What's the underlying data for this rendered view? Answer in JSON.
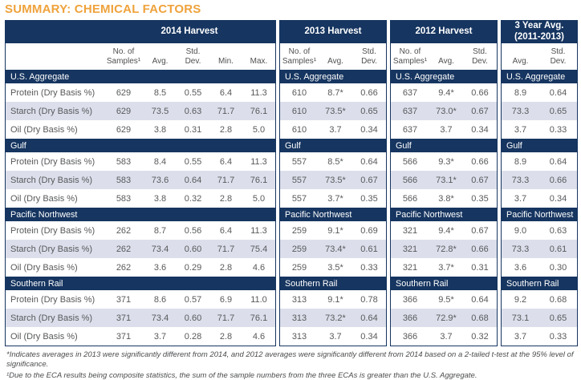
{
  "title": "SUMMARY: CHEMICAL FACTORS",
  "colors": {
    "title_orange": "#EFA23B",
    "header_navy": "#163560",
    "stripe_lavender": "#dcdfeb",
    "body_text_gray": "#58595b"
  },
  "panels": [
    {
      "header_lines": [
        "2014 Harvest"
      ],
      "has_labels": true,
      "has_samples_col": true,
      "columns": [
        [
          "No. of",
          "Samples¹"
        ],
        [
          "Avg."
        ],
        [
          "Std.",
          "Dev."
        ],
        [
          "Min."
        ],
        [
          "Max."
        ]
      ],
      "sections": [
        {
          "name": "U.S. Aggregate",
          "rows": [
            {
              "label": "Protein (Dry Basis %)",
              "values": [
                "629",
                "8.5",
                "0.55",
                "6.4",
                "11.3"
              ]
            },
            {
              "label": "Starch (Dry Basis %)",
              "values": [
                "629",
                "73.5",
                "0.63",
                "71.7",
                "76.1"
              ]
            },
            {
              "label": "Oil (Dry Basis %)",
              "values": [
                "629",
                "3.8",
                "0.31",
                "2.8",
                "5.0"
              ]
            }
          ]
        },
        {
          "name": "Gulf",
          "rows": [
            {
              "label": "Protein (Dry Basis %)",
              "values": [
                "583",
                "8.4",
                "0.55",
                "6.4",
                "11.3"
              ]
            },
            {
              "label": "Starch (Dry Basis %)",
              "values": [
                "583",
                "73.6",
                "0.64",
                "71.7",
                "76.1"
              ]
            },
            {
              "label": "Oil (Dry Basis %)",
              "values": [
                "583",
                "3.8",
                "0.32",
                "2.8",
                "5.0"
              ]
            }
          ]
        },
        {
          "name": "Pacific Northwest",
          "rows": [
            {
              "label": "Protein (Dry Basis %)",
              "values": [
                "262",
                "8.7",
                "0.56",
                "6.4",
                "11.3"
              ]
            },
            {
              "label": "Starch (Dry Basis %)",
              "values": [
                "262",
                "73.4",
                "0.60",
                "71.7",
                "75.4"
              ]
            },
            {
              "label": "Oil (Dry Basis %)",
              "values": [
                "262",
                "3.6",
                "0.29",
                "2.8",
                "4.6"
              ]
            }
          ]
        },
        {
          "name": "Southern Rail",
          "rows": [
            {
              "label": "Protein (Dry Basis %)",
              "values": [
                "371",
                "8.6",
                "0.57",
                "6.9",
                "11.0"
              ]
            },
            {
              "label": "Starch (Dry Basis %)",
              "values": [
                "371",
                "73.4",
                "0.60",
                "71.7",
                "76.1"
              ]
            },
            {
              "label": "Oil (Dry Basis %)",
              "values": [
                "371",
                "3.7",
                "0.28",
                "2.8",
                "4.6"
              ]
            }
          ]
        }
      ]
    },
    {
      "header_lines": [
        "2013 Harvest"
      ],
      "has_labels": false,
      "has_samples_col": true,
      "columns": [
        [
          "No. of",
          "Samples¹"
        ],
        [
          "Avg."
        ],
        [
          "Std.",
          "Dev."
        ]
      ],
      "sections": [
        {
          "name": "U.S. Aggregate",
          "rows": [
            {
              "values": [
                "610",
                "8.7*",
                "0.66"
              ]
            },
            {
              "values": [
                "610",
                "73.5*",
                "0.65"
              ]
            },
            {
              "values": [
                "610",
                "3.7",
                "0.34"
              ]
            }
          ]
        },
        {
          "name": "Gulf",
          "rows": [
            {
              "values": [
                "557",
                "8.5*",
                "0.64"
              ]
            },
            {
              "values": [
                "557",
                "73.5*",
                "0.67"
              ]
            },
            {
              "values": [
                "557",
                "3.7*",
                "0.35"
              ]
            }
          ]
        },
        {
          "name": "Pacific Northwest",
          "rows": [
            {
              "values": [
                "259",
                "9.1*",
                "0.69"
              ]
            },
            {
              "values": [
                "259",
                "73.4*",
                "0.61"
              ]
            },
            {
              "values": [
                "259",
                "3.5*",
                "0.33"
              ]
            }
          ]
        },
        {
          "name": "Southern Rail",
          "rows": [
            {
              "values": [
                "313",
                "9.1*",
                "0.78"
              ]
            },
            {
              "values": [
                "313",
                "73.2*",
                "0.64"
              ]
            },
            {
              "values": [
                "313",
                "3.7",
                "0.34"
              ]
            }
          ]
        }
      ]
    },
    {
      "header_lines": [
        "2012 Harvest"
      ],
      "has_labels": false,
      "has_samples_col": true,
      "columns": [
        [
          "No. of",
          "Samples¹"
        ],
        [
          "Avg."
        ],
        [
          "Std.",
          "Dev."
        ]
      ],
      "sections": [
        {
          "name": "U.S. Aggregate",
          "rows": [
            {
              "values": [
                "637",
                "9.4*",
                "0.66"
              ]
            },
            {
              "values": [
                "637",
                "73.0*",
                "0.67"
              ]
            },
            {
              "values": [
                "637",
                "3.7",
                "0.34"
              ]
            }
          ]
        },
        {
          "name": "Gulf",
          "rows": [
            {
              "values": [
                "566",
                "9.3*",
                "0.66"
              ]
            },
            {
              "values": [
                "566",
                "73.1*",
                "0.67"
              ]
            },
            {
              "values": [
                "566",
                "3.8*",
                "0.35"
              ]
            }
          ]
        },
        {
          "name": "Pacific Northwest",
          "rows": [
            {
              "values": [
                "321",
                "9.4*",
                "0.67"
              ]
            },
            {
              "values": [
                "321",
                "72.8*",
                "0.66"
              ]
            },
            {
              "values": [
                "321",
                "3.7*",
                "0.31"
              ]
            }
          ]
        },
        {
          "name": "Southern Rail",
          "rows": [
            {
              "values": [
                "366",
                "9.5*",
                "0.64"
              ]
            },
            {
              "values": [
                "366",
                "72.9*",
                "0.68"
              ]
            },
            {
              "values": [
                "366",
                "3.7",
                "0.32"
              ]
            }
          ]
        }
      ]
    },
    {
      "header_lines": [
        "3 Year Avg.",
        "(2011-2013)"
      ],
      "has_labels": false,
      "has_samples_col": false,
      "columns": [
        [
          "Avg."
        ],
        [
          "Std.",
          "Dev."
        ]
      ],
      "sections": [
        {
          "name": "U.S. Aggregate",
          "rows": [
            {
              "values": [
                "8.9",
                "0.64"
              ]
            },
            {
              "values": [
                "73.3",
                "0.65"
              ]
            },
            {
              "values": [
                "3.7",
                "0.33"
              ]
            }
          ]
        },
        {
          "name": "Gulf",
          "rows": [
            {
              "values": [
                "8.9",
                "0.64"
              ]
            },
            {
              "values": [
                "73.3",
                "0.66"
              ]
            },
            {
              "values": [
                "3.7",
                "0.34"
              ]
            }
          ]
        },
        {
          "name": "Pacific Northwest",
          "rows": [
            {
              "values": [
                "9.0",
                "0.63"
              ]
            },
            {
              "values": [
                "73.3",
                "0.61"
              ]
            },
            {
              "values": [
                "3.6",
                "0.30"
              ]
            }
          ]
        },
        {
          "name": "Southern Rail",
          "rows": [
            {
              "values": [
                "9.2",
                "0.68"
              ]
            },
            {
              "values": [
                "73.1",
                "0.65"
              ]
            },
            {
              "values": [
                "3.7",
                "0.33"
              ]
            }
          ]
        }
      ]
    }
  ],
  "footnotes": [
    "*Indicates averages in 2013 were significantly different from 2014, and 2012 averages were significantly different from 2014 based on a 2-tailed t-test at the 95% level of significance.",
    "¹Due to the ECA results being composite statistics, the sum of the sample numbers from the three ECAs is greater than the U.S. Aggregate."
  ]
}
